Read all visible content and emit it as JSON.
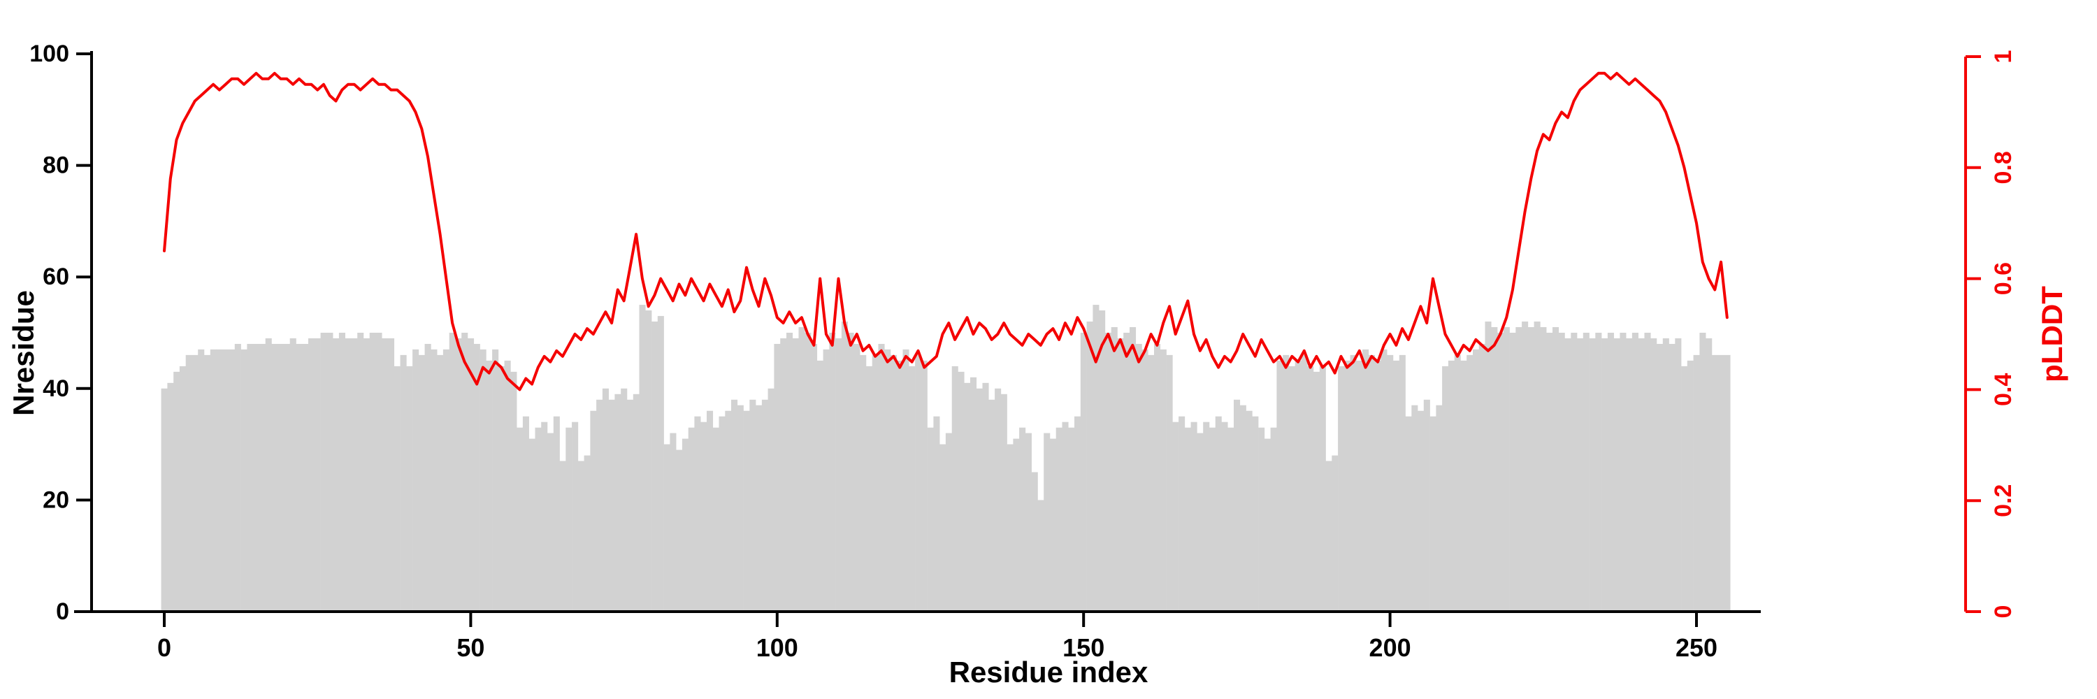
{
  "figure": {
    "xlabel": "Residue index",
    "ylabel_left": "Nresidue",
    "ylabel_right": "pLDDT"
  },
  "chart_data": {
    "type": "composite",
    "title": "",
    "x_label": "Residue index",
    "x_range": [
      0,
      255
    ],
    "x_ticks": [
      0,
      50,
      100,
      150,
      200,
      250
    ],
    "grid": false,
    "background": "#ffffff",
    "left_axis": {
      "label": "Nresidue",
      "range": [
        0,
        100
      ],
      "ticks": [
        0,
        20,
        40,
        60,
        80,
        100
      ],
      "color": "#000000"
    },
    "right_axis": {
      "label": "pLDDT",
      "range": [
        0,
        1
      ],
      "ticks": [
        0,
        0.2,
        0.4,
        0.6,
        0.8,
        1
      ],
      "color": "#f40000"
    },
    "series": [
      {
        "name": "Nresidue",
        "type": "bar",
        "axis": "left",
        "color": "#d2d2d2",
        "values": [
          40,
          41,
          43,
          44,
          46,
          46,
          47,
          46,
          47,
          47,
          47,
          47,
          48,
          47,
          48,
          48,
          48,
          49,
          48,
          48,
          48,
          49,
          48,
          48,
          49,
          49,
          50,
          50,
          49,
          50,
          49,
          49,
          50,
          49,
          50,
          50,
          49,
          49,
          44,
          46,
          44,
          47,
          46,
          48,
          47,
          46,
          47,
          50,
          49,
          50,
          49,
          48,
          47,
          45,
          47,
          44,
          45,
          43,
          33,
          35,
          31,
          33,
          34,
          32,
          35,
          27,
          33,
          34,
          27,
          28,
          36,
          38,
          40,
          38,
          39,
          40,
          38,
          39,
          55,
          54,
          52,
          53,
          30,
          32,
          29,
          31,
          33,
          35,
          34,
          36,
          33,
          35,
          36,
          38,
          37,
          36,
          38,
          37,
          38,
          40,
          48,
          49,
          50,
          49,
          51,
          50,
          48,
          45,
          47,
          50,
          49,
          52,
          50,
          48,
          46,
          44,
          46,
          48,
          47,
          46,
          45,
          47,
          44,
          46,
          45,
          33,
          35,
          30,
          32,
          44,
          43,
          41,
          42,
          40,
          41,
          38,
          40,
          39,
          30,
          31,
          33,
          32,
          25,
          20,
          32,
          31,
          33,
          34,
          33,
          35,
          50,
          52,
          55,
          54,
          50,
          51,
          49,
          50,
          51,
          48,
          47,
          46,
          48,
          47,
          46,
          34,
          35,
          33,
          34,
          32,
          34,
          33,
          35,
          34,
          33,
          38,
          37,
          36,
          35,
          33,
          31,
          33,
          45,
          46,
          44,
          45,
          46,
          44,
          43,
          44,
          27,
          28,
          44,
          45,
          46,
          45,
          47,
          46,
          45,
          47,
          46,
          45,
          46,
          35,
          37,
          36,
          38,
          35,
          37,
          44,
          45,
          46,
          45,
          46,
          47,
          48,
          52,
          51,
          50,
          51,
          50,
          51,
          52,
          51,
          52,
          51,
          50,
          51,
          50,
          49,
          50,
          49,
          50,
          49,
          50,
          49,
          50,
          49,
          50,
          49,
          50,
          49,
          50,
          49,
          48,
          49,
          48,
          49,
          44,
          45,
          46,
          50,
          49,
          46,
          46,
          46
        ]
      },
      {
        "name": "pLDDT",
        "type": "line",
        "axis": "right",
        "color": "#f40000",
        "values": [
          0.65,
          0.78,
          0.85,
          0.88,
          0.9,
          0.92,
          0.93,
          0.94,
          0.95,
          0.94,
          0.95,
          0.96,
          0.96,
          0.95,
          0.96,
          0.97,
          0.96,
          0.96,
          0.97,
          0.96,
          0.96,
          0.95,
          0.96,
          0.95,
          0.95,
          0.94,
          0.95,
          0.93,
          0.92,
          0.94,
          0.95,
          0.95,
          0.94,
          0.95,
          0.96,
          0.95,
          0.95,
          0.94,
          0.94,
          0.93,
          0.92,
          0.9,
          0.87,
          0.82,
          0.75,
          0.68,
          0.6,
          0.52,
          0.48,
          0.45,
          0.43,
          0.41,
          0.44,
          0.43,
          0.45,
          0.44,
          0.42,
          0.41,
          0.4,
          0.42,
          0.41,
          0.44,
          0.46,
          0.45,
          0.47,
          0.46,
          0.48,
          0.5,
          0.49,
          0.51,
          0.5,
          0.52,
          0.54,
          0.52,
          0.58,
          0.56,
          0.62,
          0.68,
          0.6,
          0.55,
          0.57,
          0.6,
          0.58,
          0.56,
          0.59,
          0.57,
          0.6,
          0.58,
          0.56,
          0.59,
          0.57,
          0.55,
          0.58,
          0.54,
          0.56,
          0.62,
          0.58,
          0.55,
          0.6,
          0.57,
          0.53,
          0.52,
          0.54,
          0.52,
          0.53,
          0.5,
          0.48,
          0.6,
          0.5,
          0.48,
          0.6,
          0.52,
          0.48,
          0.5,
          0.47,
          0.48,
          0.46,
          0.47,
          0.45,
          0.46,
          0.44,
          0.46,
          0.45,
          0.47,
          0.44,
          0.45,
          0.46,
          0.5,
          0.52,
          0.49,
          0.51,
          0.53,
          0.5,
          0.52,
          0.51,
          0.49,
          0.5,
          0.52,
          0.5,
          0.49,
          0.48,
          0.5,
          0.49,
          0.48,
          0.5,
          0.51,
          0.49,
          0.52,
          0.5,
          0.53,
          0.51,
          0.48,
          0.45,
          0.48,
          0.5,
          0.47,
          0.49,
          0.46,
          0.48,
          0.45,
          0.47,
          0.5,
          0.48,
          0.52,
          0.55,
          0.5,
          0.53,
          0.56,
          0.5,
          0.47,
          0.49,
          0.46,
          0.44,
          0.46,
          0.45,
          0.47,
          0.5,
          0.48,
          0.46,
          0.49,
          0.47,
          0.45,
          0.46,
          0.44,
          0.46,
          0.45,
          0.47,
          0.44,
          0.46,
          0.44,
          0.45,
          0.43,
          0.46,
          0.44,
          0.45,
          0.47,
          0.44,
          0.46,
          0.45,
          0.48,
          0.5,
          0.48,
          0.51,
          0.49,
          0.52,
          0.55,
          0.52,
          0.6,
          0.55,
          0.5,
          0.48,
          0.46,
          0.48,
          0.47,
          0.49,
          0.48,
          0.47,
          0.48,
          0.5,
          0.53,
          0.58,
          0.65,
          0.72,
          0.78,
          0.83,
          0.86,
          0.85,
          0.88,
          0.9,
          0.89,
          0.92,
          0.94,
          0.95,
          0.96,
          0.97,
          0.97,
          0.96,
          0.97,
          0.96,
          0.95,
          0.96,
          0.95,
          0.94,
          0.93,
          0.92,
          0.9,
          0.87,
          0.84,
          0.8,
          0.75,
          0.7,
          0.63,
          0.6,
          0.58,
          0.63,
          0.53
        ]
      }
    ]
  }
}
